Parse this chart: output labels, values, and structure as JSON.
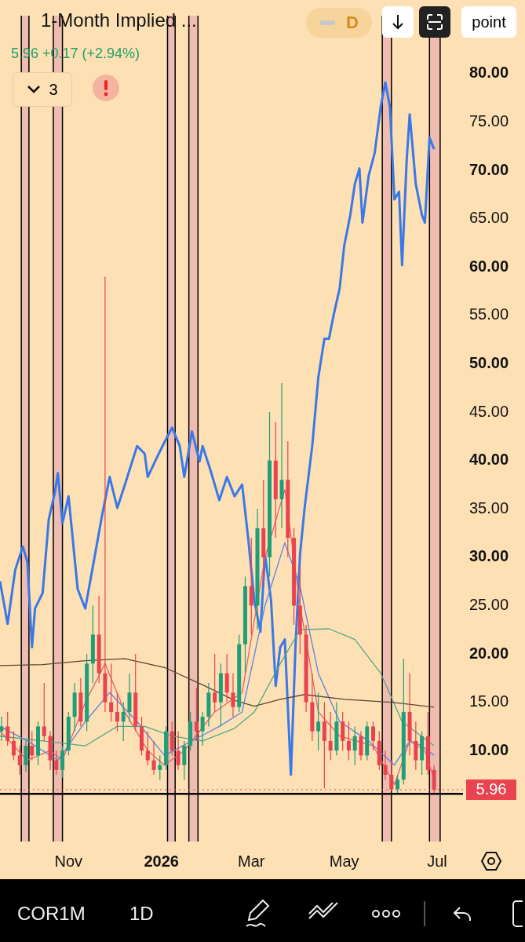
{
  "chart_data": {
    "type": "candlestick",
    "title": "1-Month Implied ...",
    "subtitle": "5.96 +0.17 (+2.94%)",
    "annotations": [
      "3",
      "D",
      "point",
      "COR1M",
      "1D"
    ],
    "x": [
      "2025-09-18",
      "2025-09-22",
      "2025-09-26",
      "2025-09-30",
      "2025-10-04",
      "2025-10-08",
      "2025-10-12",
      "2025-10-16",
      "2025-10-20",
      "2025-10-24",
      "2025-10-28",
      "2025-11-01",
      "2025-11-05",
      "2025-11-09",
      "2025-11-13",
      "2025-11-17",
      "2025-11-21",
      "2025-11-25",
      "2025-11-29",
      "2025-12-03",
      "2025-12-07",
      "2025-12-11",
      "2025-12-15",
      "2025-12-19",
      "2025-12-23",
      "2025-12-27",
      "2025-12-31",
      "2026-01-04",
      "2026-01-08",
      "2026-01-12",
      "2026-01-16",
      "2026-01-20",
      "2026-01-24",
      "2026-01-28",
      "2026-02-01",
      "2026-02-05",
      "2026-02-09",
      "2026-02-13",
      "2026-02-17",
      "2026-02-21",
      "2026-02-25",
      "2026-03-01",
      "2026-03-05",
      "2026-03-09",
      "2026-03-13",
      "2026-03-17",
      "2026-03-21",
      "2026-03-25",
      "2026-03-29",
      "2026-04-02",
      "2026-04-06",
      "2026-04-10",
      "2026-04-14",
      "2026-04-18",
      "2026-04-22",
      "2026-04-26",
      "2026-04-30",
      "2026-05-04",
      "2026-05-08",
      "2026-05-12",
      "2026-05-16",
      "2026-05-20",
      "2026-05-24",
      "2026-05-28",
      "2026-06-01",
      "2026-06-05",
      "2026-06-09",
      "2026-06-13",
      "2026-06-17",
      "2026-06-21",
      "2026-06-25",
      "2026-06-29"
    ],
    "ohlc": [
      [
        12,
        13.5,
        11,
        12.5
      ],
      [
        12.5,
        14,
        10.5,
        11
      ],
      [
        11,
        12,
        9,
        9.5
      ],
      [
        9.5,
        10.5,
        7.5,
        8.5
      ],
      [
        8.5,
        11,
        7.8,
        10.5
      ],
      [
        10.5,
        12,
        9,
        9.5
      ],
      [
        9.5,
        13,
        8.5,
        12.5
      ],
      [
        12.5,
        17,
        11,
        11.5
      ],
      [
        11.5,
        12,
        8,
        9
      ],
      [
        9,
        10,
        7.5,
        8
      ],
      [
        8,
        10.5,
        7.2,
        10
      ],
      [
        10,
        14,
        9.5,
        13.5
      ],
      [
        13.5,
        17,
        12,
        16
      ],
      [
        16,
        17.5,
        12.5,
        13
      ],
      [
        13,
        20,
        12,
        19
      ],
      [
        19,
        25,
        17,
        22
      ],
      [
        22,
        26,
        17,
        18
      ],
      [
        18,
        59,
        14,
        15
      ],
      [
        15,
        19,
        13,
        14
      ],
      [
        14,
        16,
        12,
        13
      ],
      [
        13,
        15,
        11,
        14
      ],
      [
        14,
        18,
        13,
        16
      ],
      [
        16,
        20,
        12,
        12.5
      ],
      [
        12.5,
        13.5,
        9.5,
        10
      ],
      [
        10,
        12,
        8.5,
        9
      ],
      [
        9,
        11,
        7.5,
        8
      ],
      [
        8,
        9.5,
        7,
        8.5
      ],
      [
        8.5,
        12.5,
        8,
        12
      ],
      [
        12,
        13,
        9.5,
        10
      ],
      [
        10,
        12,
        8,
        8.5
      ],
      [
        8.5,
        11,
        7,
        10.5
      ],
      [
        10.5,
        14,
        10,
        13
      ],
      [
        13,
        16.5,
        11,
        12
      ],
      [
        12,
        14,
        10.5,
        13.5
      ],
      [
        13.5,
        17,
        12.5,
        16
      ],
      [
        16,
        20,
        14,
        15
      ],
      [
        15,
        19,
        12.5,
        18
      ],
      [
        18,
        20,
        15,
        16
      ],
      [
        16,
        18,
        13.5,
        14.5
      ],
      [
        14.5,
        22,
        14,
        21
      ],
      [
        21,
        28,
        18,
        27
      ],
      [
        27,
        32,
        22,
        25
      ],
      [
        25,
        35,
        22.5,
        33
      ],
      [
        33,
        38,
        27,
        30
      ],
      [
        30,
        45,
        28,
        40
      ],
      [
        40,
        44,
        32,
        36
      ],
      [
        36,
        48,
        33,
        38
      ],
      [
        38,
        42,
        30,
        32
      ],
      [
        32,
        33,
        23,
        25
      ],
      [
        25,
        29,
        20,
        22
      ],
      [
        22,
        23,
        14,
        15
      ],
      [
        15,
        18,
        11,
        12
      ],
      [
        12,
        16,
        10,
        13
      ],
      [
        13,
        15,
        6.1,
        11
      ],
      [
        11,
        14,
        9,
        10
      ],
      [
        10,
        15,
        9.5,
        13
      ],
      [
        13,
        14,
        10,
        11
      ],
      [
        11,
        13,
        9,
        10
      ],
      [
        10,
        12.5,
        8.5,
        11.5
      ],
      [
        11.5,
        12,
        9,
        9.5
      ],
      [
        9.5,
        13,
        9,
        12.5
      ],
      [
        12.5,
        13,
        10,
        11
      ],
      [
        11,
        12,
        8,
        8.5
      ],
      [
        8.5,
        10,
        7,
        7.5
      ],
      [
        7.5,
        9,
        5.8,
        6
      ],
      [
        6,
        7.5,
        5.5,
        7
      ],
      [
        7,
        19.5,
        6.5,
        14
      ],
      [
        14,
        18,
        9.5,
        11
      ],
      [
        11,
        13,
        8,
        9
      ],
      [
        9,
        12,
        7.5,
        11.5
      ],
      [
        11.5,
        14,
        7.5,
        8
      ],
      [
        8,
        8.5,
        5.5,
        5.96
      ]
    ],
    "colors": [
      "#1f9e78",
      "#e8434f",
      "#e8434f",
      "#e8434f",
      "#1f9e78",
      "#e8434f",
      "#1f9e78",
      "#e8434f",
      "#e8434f",
      "#e8434f",
      "#1f9e78",
      "#1f9e78",
      "#1f9e78",
      "#e8434f",
      "#1f9e78",
      "#1f9e78",
      "#e8434f",
      "#e8434f",
      "#e8434f",
      "#e8434f",
      "#1f9e78",
      "#1f9e78",
      "#e8434f",
      "#e8434f",
      "#e8434f",
      "#e8434f",
      "#1f9e78",
      "#1f9e78",
      "#e8434f",
      "#e8434f",
      "#1f9e78",
      "#1f9e78",
      "#e8434f",
      "#1f9e78",
      "#1f9e78",
      "#e8434f",
      "#1f9e78",
      "#e8434f",
      "#e8434f",
      "#1f9e78",
      "#1f9e78",
      "#e8434f",
      "#1f9e78",
      "#e8434f",
      "#1f9e78",
      "#e8434f",
      "#1f9e78",
      "#e8434f",
      "#e8434f",
      "#e8434f",
      "#e8434f",
      "#e8434f",
      "#1f9e78",
      "#e8434f",
      "#e8434f",
      "#1f9e78",
      "#e8434f",
      "#e8434f",
      "#1f9e78",
      "#e8434f",
      "#1f9e78",
      "#e8434f",
      "#e8434f",
      "#e8434f",
      "#e8434f",
      "#1f9e78",
      "#1f9e78",
      "#e8434f",
      "#e8434f",
      "#1f9e78",
      "#e8434f",
      "#e8434f"
    ],
    "series": [
      {
        "type": "line",
        "color": "#5b4636",
        "x": [
          "2025-09-17",
          "2025-10-15",
          "2025-11-12",
          "2025-12-08",
          "2026-01-03",
          "2026-01-28",
          "2026-02-18",
          "2026-03-03",
          "2026-03-20",
          "2026-04-05",
          "2026-05-01",
          "2026-06-01",
          "2026-06-29"
        ],
        "values": [
          18.8,
          18.9,
          19.3,
          19.5,
          18.6,
          16.8,
          15.2,
          14.6,
          15.3,
          15.8,
          15.3,
          15.0,
          14.5
        ]
      },
      {
        "type": "line",
        "color": "#4fa987",
        "x": [
          "2025-09-17",
          "2025-10-15",
          "2025-11-12",
          "2025-12-03",
          "2025-12-21",
          "2026-01-08",
          "2026-01-28",
          "2026-02-18",
          "2026-03-03",
          "2026-03-20",
          "2026-04-02",
          "2026-04-21",
          "2026-05-08",
          "2026-05-25",
          "2026-06-08",
          "2026-06-29"
        ],
        "values": [
          11.5,
          11,
          10.5,
          12.5,
          12.5,
          11.5,
          11,
          12.3,
          14,
          19,
          22.5,
          22.6,
          21.5,
          18,
          13,
          10.5
        ]
      },
      {
        "type": "line",
        "color": "#5b83e0",
        "x": [
          "2025-09-17",
          "2025-10-05",
          "2025-10-25",
          "2025-11-12",
          "2025-11-28",
          "2025-12-16",
          "2026-01-03",
          "2026-01-21",
          "2026-02-08",
          "2026-02-23",
          "2026-03-10",
          "2026-03-23",
          "2026-04-02",
          "2026-04-14",
          "2026-04-28",
          "2026-05-17",
          "2026-06-03",
          "2026-06-13",
          "2026-06-21",
          "2026-06-29"
        ],
        "values": [
          12.5,
          11,
          9,
          13,
          16,
          13,
          9.5,
          11,
          12.5,
          14,
          25,
          31.5,
          27,
          18,
          13,
          11,
          8.5,
          11,
          10.5,
          9.5
        ]
      },
      {
        "type": "line",
        "color": "#e8616a",
        "x": [
          "2025-09-17",
          "2025-10-05",
          "2025-10-20",
          "2025-10-28",
          "2025-11-12",
          "2025-11-25",
          "2025-12-08",
          "2025-12-23",
          "2026-01-03",
          "2026-01-16",
          "2026-02-05",
          "2026-02-23",
          "2026-03-10",
          "2026-03-23",
          "2026-04-02",
          "2026-04-14",
          "2026-04-28",
          "2026-05-20",
          "2026-06-03",
          "2026-06-13",
          "2026-06-23",
          "2026-06-29"
        ],
        "values": [
          12,
          9,
          10,
          9,
          15,
          19,
          14,
          10,
          8.5,
          10,
          14,
          16,
          30,
          37,
          25,
          14,
          11.5,
          10.5,
          6.5,
          11,
          10,
          7
        ]
      },
      {
        "type": "line",
        "color": "#3a78e8",
        "x": [
          "2025-09-17",
          "2025-09-22",
          "2025-09-27",
          "2025-10-02",
          "2025-10-05",
          "2025-10-08",
          "2025-10-10",
          "2025-10-15",
          "2025-10-19",
          "2025-10-23",
          "2025-10-25",
          "2025-10-28",
          "2025-11-01",
          "2025-11-07",
          "2025-11-12",
          "2025-11-23",
          "2025-11-28",
          "2025-12-03",
          "2025-12-08",
          "2025-12-16",
          "2025-12-21",
          "2025-12-23",
          "2025-12-29",
          "2026-01-03",
          "2026-01-08",
          "2026-01-13",
          "2026-01-16",
          "2026-01-21",
          "2026-01-26",
          "2026-01-28",
          "2026-02-02",
          "2026-02-08",
          "2026-02-13",
          "2026-02-18",
          "2026-02-23",
          "2026-02-27",
          "2026-03-03",
          "2026-03-07",
          "2026-03-10",
          "2026-03-14",
          "2026-03-17",
          "2026-03-20",
          "2026-03-23",
          "2026-03-27",
          "2026-03-30",
          "2026-04-02",
          "2026-04-05",
          "2026-04-10",
          "2026-04-14",
          "2026-04-18",
          "2026-04-21",
          "2026-04-24",
          "2026-04-28",
          "2026-05-01",
          "2026-05-05",
          "2026-05-08",
          "2026-05-11",
          "2026-05-13",
          "2026-05-17",
          "2026-05-21",
          "2026-05-25",
          "2026-05-28",
          "2026-05-31",
          "2026-06-03",
          "2026-06-06",
          "2026-06-08",
          "2026-06-11",
          "2026-06-13",
          "2026-06-17",
          "2026-06-21",
          "2026-06-23",
          "2026-06-26",
          "2026-06-29"
        ],
        "values": [
          27.5,
          23.1,
          28.7,
          31.1,
          29.5,
          20.7,
          24.7,
          26.3,
          33.9,
          36.7,
          38.7,
          33.5,
          36.3,
          26.7,
          24.7,
          34.3,
          38.3,
          35.1,
          37.5,
          41.5,
          40.7,
          38.3,
          40.3,
          41.9,
          43.4,
          41.5,
          38.3,
          43,
          39.9,
          41.5,
          39.1,
          35.9,
          38.3,
          36.3,
          37.5,
          31.9,
          25.5,
          22.3,
          30.3,
          25.5,
          16.7,
          20.7,
          21.5,
          7.5,
          20.7,
          30.3,
          35.1,
          41.5,
          48.6,
          52.6,
          52.6,
          55,
          57.8,
          62.2,
          65.4,
          68.6,
          70.2,
          64.6,
          69.4,
          71.8,
          76.6,
          79.1,
          76.6,
          67,
          67.8,
          60.2,
          71,
          75.8,
          68.6,
          65.4,
          64.6,
          73.4,
          72.2
        ]
      }
    ],
    "bands": [
      {
        "axis": "x",
        "from": "2025-10-01",
        "to": "2025-10-06",
        "color": "#eebcb0"
      },
      {
        "axis": "x",
        "from": "2025-10-22",
        "to": "2025-10-28",
        "color": "#eebcb0"
      },
      {
        "axis": "x",
        "from": "2026-01-05",
        "to": "2026-01-10",
        "color": "#eebcb0"
      },
      {
        "axis": "x",
        "from": "2026-01-19",
        "to": "2026-01-25",
        "color": "#eebcb0"
      },
      {
        "axis": "x",
        "from": "2026-05-26",
        "to": "2026-06-01",
        "color": "#eebcb0"
      },
      {
        "axis": "x",
        "from": "2026-06-26",
        "to": "2026-07-03",
        "color": "#eebcb0"
      }
    ],
    "ref_lines": [
      {
        "axis": "y",
        "value": 5.54,
        "color": "#000000",
        "line_style": "solid"
      },
      {
        "axis": "y",
        "value": 5.96,
        "label": "5.96",
        "color": "#e8434f",
        "line_style": "dotted"
      }
    ],
    "xlim": [
      "2025-09-17",
      "2026-07-18"
    ],
    "xticks": [
      {
        "value": "2025-11-01",
        "label": "Nov"
      },
      {
        "value": "2026-01-01",
        "label": "2026"
      },
      {
        "value": "2026-03-01",
        "label": "Mar"
      },
      {
        "value": "2026-05-01",
        "label": "May"
      },
      {
        "value": "2026-07-01",
        "label": "Jul"
      }
    ],
    "ylim": [
      0.6,
      86
    ],
    "yticks": [
      {
        "value": 10,
        "label": "10.00"
      },
      {
        "value": 15,
        "label": "15.00"
      },
      {
        "value": 20,
        "label": "20.00"
      },
      {
        "value": 25,
        "label": "25.00"
      },
      {
        "value": 30,
        "label": "30.00"
      },
      {
        "value": 35,
        "label": "35.00"
      },
      {
        "value": 40,
        "label": "40.00"
      },
      {
        "value": 45,
        "label": "45.00"
      },
      {
        "value": 50,
        "label": "50.00"
      },
      {
        "value": 55,
        "label": "55.00"
      },
      {
        "value": 60,
        "label": "60.00"
      },
      {
        "value": 65,
        "label": "65.00"
      },
      {
        "value": 70,
        "label": "70.00"
      },
      {
        "value": 75,
        "label": "75.00"
      },
      {
        "value": 80,
        "label": "80.00"
      }
    ],
    "grid": false,
    "legend": false
  }
}
